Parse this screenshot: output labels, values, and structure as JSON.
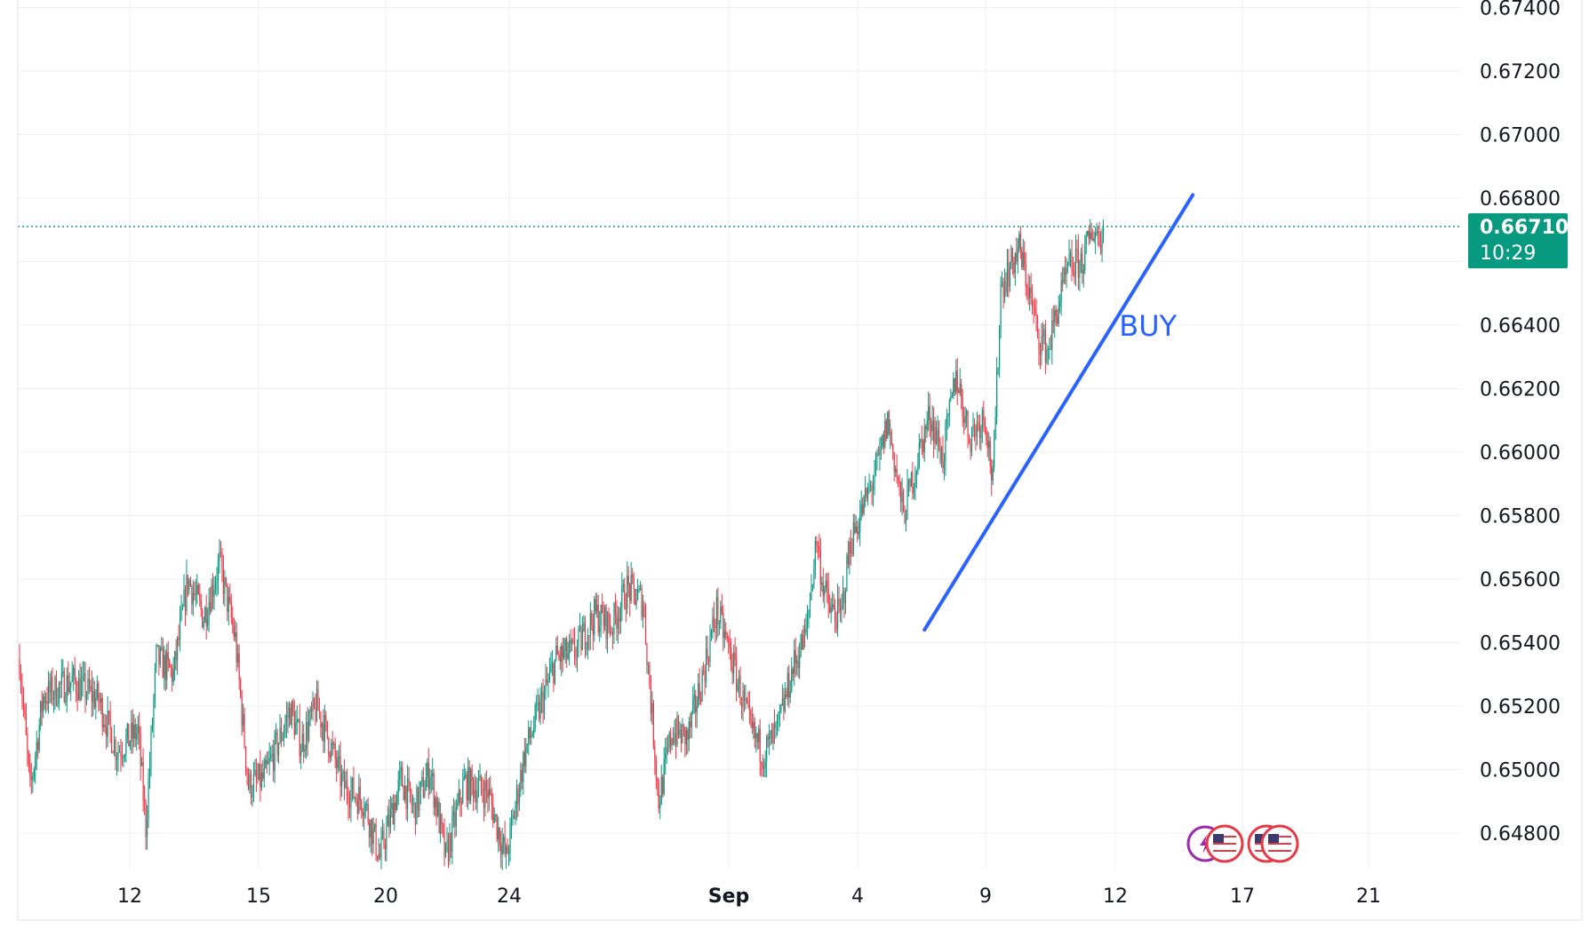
{
  "colors": {
    "up": "#089981",
    "down": "#f23645",
    "grid": "#eef0f3",
    "trendline": "#2962ff",
    "last_price_bg": "#089981",
    "annotation": "#2962ff",
    "flag_red": "#e53945",
    "flag_purple": "#9c27b0"
  },
  "chart_data": {
    "type": "candlestick",
    "xlabel": "",
    "ylabel": "",
    "x_ticks": [
      "12",
      "15",
      "20",
      "24",
      "Sep",
      "4",
      "9",
      "12",
      "17",
      "21"
    ],
    "y_ticks": [
      "0.67400",
      "0.67200",
      "0.67000",
      "0.66800",
      "0.66400",
      "0.66200",
      "0.66000",
      "0.65800",
      "0.65600",
      "0.65400",
      "0.65200",
      "0.65000",
      "0.64800"
    ],
    "ylim": [
      0.6471,
      0.6746
    ],
    "grid": true,
    "last_price": {
      "value": "0.66710",
      "countdown": "10:29",
      "y": 0.6671
    },
    "anchors": [
      [
        0,
        0.6535
      ],
      [
        8,
        0.6493
      ],
      [
        18,
        0.6523
      ],
      [
        40,
        0.6528
      ],
      [
        60,
        0.6522
      ],
      [
        74,
        0.6506
      ],
      [
        90,
        0.6512
      ],
      [
        96,
        0.6482
      ],
      [
        104,
        0.6535
      ],
      [
        117,
        0.653
      ],
      [
        128,
        0.656
      ],
      [
        140,
        0.6548
      ],
      [
        152,
        0.6565
      ],
      [
        164,
        0.6541
      ],
      [
        174,
        0.6495
      ],
      [
        186,
        0.6497
      ],
      [
        206,
        0.6519
      ],
      [
        214,
        0.6508
      ],
      [
        226,
        0.652
      ],
      [
        236,
        0.6508
      ],
      [
        246,
        0.6495
      ],
      [
        262,
        0.649
      ],
      [
        274,
        0.6472
      ],
      [
        276,
        0.6476
      ],
      [
        290,
        0.6497
      ],
      [
        300,
        0.6487
      ],
      [
        312,
        0.65
      ],
      [
        324,
        0.6472
      ],
      [
        338,
        0.6496
      ],
      [
        356,
        0.6493
      ],
      [
        370,
        0.6472
      ],
      [
        384,
        0.6505
      ],
      [
        396,
        0.652
      ],
      [
        408,
        0.6535
      ],
      [
        422,
        0.6537
      ],
      [
        438,
        0.6549
      ],
      [
        450,
        0.6545
      ],
      [
        462,
        0.6557
      ],
      [
        474,
        0.6553
      ],
      [
        486,
        0.649
      ],
      [
        496,
        0.6512
      ],
      [
        508,
        0.651
      ],
      [
        518,
        0.6527
      ],
      [
        530,
        0.655
      ],
      [
        540,
        0.6537
      ],
      [
        556,
        0.6512
      ],
      [
        566,
        0.6505
      ],
      [
        576,
        0.6512
      ],
      [
        588,
        0.6532
      ],
      [
        598,
        0.6543
      ],
      [
        606,
        0.6573
      ],
      [
        610,
        0.656
      ],
      [
        616,
        0.655
      ],
      [
        624,
        0.6548
      ],
      [
        632,
        0.6572
      ],
      [
        648,
        0.659
      ],
      [
        654,
        0.6598
      ],
      [
        660,
        0.661
      ],
      [
        672,
        0.658
      ],
      [
        684,
        0.66
      ],
      [
        692,
        0.6612
      ],
      [
        702,
        0.6598
      ],
      [
        712,
        0.6625
      ],
      [
        722,
        0.6605
      ],
      [
        734,
        0.6612
      ],
      [
        740,
        0.659
      ],
      [
        746,
        0.6652
      ],
      [
        760,
        0.6664
      ],
      [
        768,
        0.665
      ],
      [
        774,
        0.6637
      ],
      [
        782,
        0.6632
      ],
      [
        790,
        0.6647
      ],
      [
        798,
        0.6658
      ],
      [
        808,
        0.666
      ],
      [
        816,
        0.667
      ],
      [
        824,
        0.6667
      ]
    ],
    "trendline": {
      "x0": 688,
      "y0": 0.6544,
      "x1": 892,
      "y1": 0.6681
    },
    "annotations": [
      {
        "text": "BUY",
        "x": 836,
        "y": 0.664
      }
    ],
    "event_markers": [
      "lightning-icon",
      "us-flag-icon",
      "us-flag-icon",
      "us-flag-icon"
    ]
  }
}
